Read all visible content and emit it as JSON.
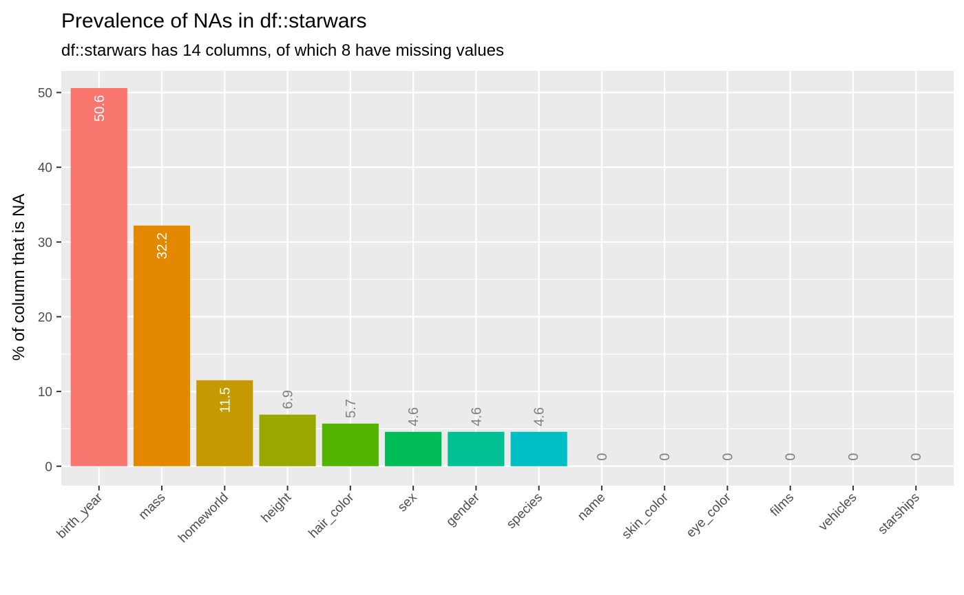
{
  "chart_data": {
    "type": "bar",
    "title": "Prevalence of NAs in df::starwars",
    "subtitle": "df::starwars has 14 columns, of which 8 have missing values",
    "xlabel": "",
    "ylabel": "% of column that is NA",
    "ylim": [
      -2.6,
      52.9
    ],
    "yticks": [
      0,
      10,
      20,
      30,
      40,
      50
    ],
    "grid": true,
    "legend": "none",
    "panel_background": "#EBEBEB",
    "categories": [
      "birth_year",
      "mass",
      "homeworld",
      "height",
      "hair_color",
      "sex",
      "gender",
      "species",
      "name",
      "skin_color",
      "eye_color",
      "films",
      "vehicles",
      "starships"
    ],
    "values": [
      50.6,
      32.2,
      11.5,
      6.9,
      5.7,
      4.6,
      4.6,
      4.6,
      0,
      0,
      0,
      0,
      0,
      0
    ],
    "labels": [
      "50.6",
      "32.2",
      "11.5",
      "6.9",
      "5.7",
      "4.6",
      "4.6",
      "4.6",
      "0",
      "0",
      "0",
      "0",
      "0",
      "0"
    ],
    "colors": [
      "#F8766D",
      "#E38900",
      "#C49A00",
      "#99A800",
      "#53B400",
      "#00BC56",
      "#00C094",
      "#00BFC4",
      "#00B6EB",
      "#06A4FF",
      "#A58AFF",
      "#DF70F8",
      "#FB61D7",
      "#FF66A8"
    ],
    "label_inside_color": "#FFFFFF",
    "label_outside_color": "#808080"
  }
}
